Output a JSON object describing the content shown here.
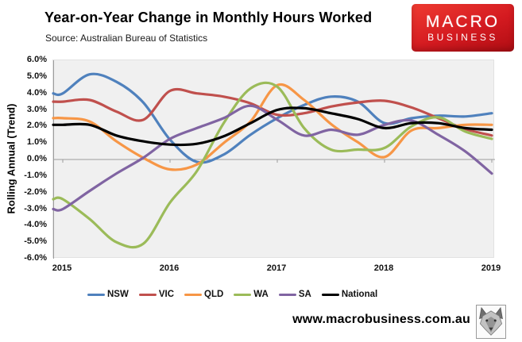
{
  "header": {
    "title": "Year-on-Year Change in Monthly Hours Worked",
    "source": "Source: Australian Bureau of Statistics",
    "logo": {
      "line1": "MACRO",
      "line2": "BUSINESS",
      "bg_color": "#d41a20",
      "text_color": "#ffffff"
    }
  },
  "footer": {
    "website": "www.macrobusiness.com.au",
    "wolf_icon": "wolf-head-logo"
  },
  "chart_data": {
    "type": "line",
    "title": "Year-on-Year Change in Monthly Hours Worked",
    "subtitle": "Source: Australian Bureau of Statistics",
    "xlabel": "",
    "ylabel": "Rolling Annual (Trend)",
    "x": [
      2015.0,
      2015.25,
      2015.5,
      2015.75,
      2016.0,
      2016.25,
      2016.5,
      2016.75,
      2017.0,
      2017.25,
      2017.5,
      2017.75,
      2018.0,
      2018.25,
      2018.5,
      2018.75,
      2019.0
    ],
    "x_tick_labels": [
      "2015",
      "2016",
      "2017",
      "2018",
      "2019"
    ],
    "y_tick_labels": [
      "6.0%",
      "5.0%",
      "4.0%",
      "3.0%",
      "2.0%",
      "1.0%",
      "0.0%",
      "-1.0%",
      "-2.0%",
      "-3.0%",
      "-4.0%",
      "-5.0%",
      "-6.0%"
    ],
    "ylim": [
      -6,
      6
    ],
    "unit": "percent",
    "grid": "zero-line-only",
    "plot_bg": "#f0f0f0",
    "axis_color": "#9c9c9c",
    "legend_position": "bottom",
    "series": [
      {
        "name": "NSW",
        "color": "#4F81BD",
        "values": [
          4.0,
          5.15,
          4.7,
          3.45,
          1.2,
          -0.15,
          0.3,
          1.5,
          2.5,
          3.3,
          3.8,
          3.5,
          2.2,
          2.5,
          2.65,
          2.6,
          2.8
        ]
      },
      {
        "name": "VIC",
        "color": "#C0504D",
        "values": [
          3.5,
          3.6,
          2.9,
          2.4,
          4.15,
          4.0,
          3.8,
          3.4,
          2.7,
          2.8,
          3.2,
          3.45,
          3.55,
          3.15,
          2.5,
          1.85,
          1.45
        ]
      },
      {
        "name": "QLD",
        "color": "#F79646",
        "values": [
          2.5,
          2.3,
          1.1,
          0.1,
          -0.6,
          -0.3,
          1.0,
          2.3,
          4.5,
          3.6,
          2.15,
          1.05,
          0.15,
          1.75,
          1.9,
          2.1,
          2.1
        ]
      },
      {
        "name": "WA",
        "color": "#9BBB59",
        "values": [
          -2.4,
          -3.6,
          -5.0,
          -5.1,
          -2.6,
          -0.7,
          2.2,
          4.3,
          4.4,
          1.9,
          0.6,
          0.6,
          0.7,
          2.0,
          2.55,
          1.7,
          1.25
        ]
      },
      {
        "name": "SA",
        "color": "#8064A2",
        "values": [
          -3.0,
          -1.9,
          -0.85,
          0.1,
          1.25,
          1.9,
          2.5,
          3.25,
          2.4,
          1.45,
          1.8,
          1.5,
          2.1,
          2.35,
          1.5,
          0.5,
          -0.85
        ]
      },
      {
        "name": "National",
        "color": "#000000",
        "values": [
          2.1,
          2.1,
          1.45,
          1.1,
          0.9,
          0.95,
          1.4,
          2.2,
          3.0,
          3.1,
          2.8,
          2.45,
          1.9,
          2.2,
          2.2,
          1.9,
          1.8
        ]
      }
    ]
  }
}
